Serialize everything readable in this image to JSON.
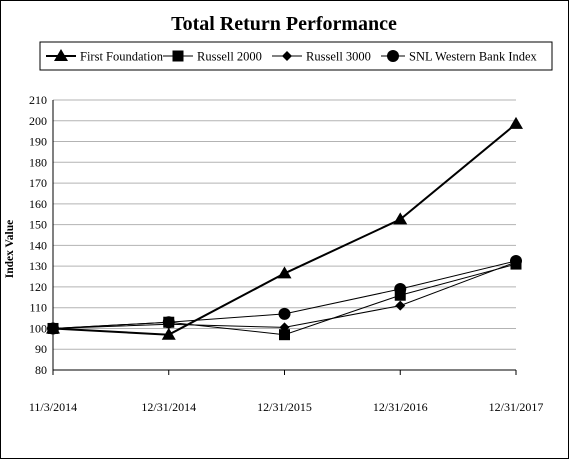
{
  "chart_data": {
    "type": "line",
    "title": "Total Return Performance",
    "xlabel": "",
    "ylabel": "Index Value",
    "categories": [
      "11/3/2014",
      "12/31/2014",
      "12/31/2015",
      "12/31/2016",
      "12/31/2017"
    ],
    "ylim": [
      80,
      210
    ],
    "yticks": [
      80,
      90,
      100,
      110,
      120,
      130,
      140,
      150,
      160,
      170,
      180,
      190,
      200,
      210
    ],
    "grid": "horizontal",
    "legend_position": "top",
    "series": [
      {
        "name": "First Foundation",
        "marker": "triangle",
        "stroke_width": 2,
        "color": "#000000",
        "values": [
          100,
          97,
          126.5,
          152.5,
          198.5
        ]
      },
      {
        "name": "Russell 2000",
        "marker": "square",
        "stroke_width": 1,
        "color": "#000000",
        "values": [
          100,
          103,
          97,
          116,
          131
        ]
      },
      {
        "name": "Russell 3000",
        "marker": "diamond",
        "stroke_width": 1,
        "color": "#000000",
        "values": [
          100,
          102,
          100.5,
          111,
          132
        ]
      },
      {
        "name": "SNL Western Bank Index",
        "marker": "circle",
        "stroke_width": 1,
        "color": "#000000",
        "values": [
          100,
          103,
          107,
          119,
          132.5
        ]
      }
    ]
  }
}
